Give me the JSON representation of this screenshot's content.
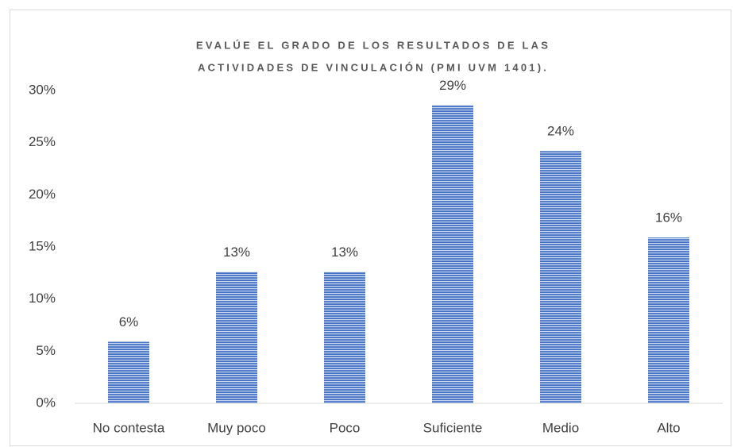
{
  "chart_data": {
    "type": "bar",
    "title": [
      "EVALÚE EL GRADO DE LOS RESULTADOS DE LAS",
      "ACTIVIDADES DE VINCULACIÓN  (PMI UVM 1401)."
    ],
    "categories": [
      "No contesta",
      "Muy poco",
      "Poco",
      "Suficiente",
      "Medio",
      "Alto"
    ],
    "values": [
      5.9,
      12.6,
      12.6,
      28.6,
      24.2,
      15.9
    ],
    "value_labels": [
      "6%",
      "13%",
      "13%",
      "29%",
      "24%",
      "16%"
    ],
    "color": "#4472c4",
    "ylim": [
      0,
      30
    ],
    "yticks": [
      {
        "value": 0,
        "label": "0%"
      },
      {
        "value": 5,
        "label": "5%"
      },
      {
        "value": 10,
        "label": "10%"
      },
      {
        "value": 15,
        "label": "15%"
      },
      {
        "value": 20,
        "label": "20%"
      },
      {
        "value": 25,
        "label": "25%"
      },
      {
        "value": 30,
        "label": "30%"
      }
    ],
    "grid": false
  }
}
